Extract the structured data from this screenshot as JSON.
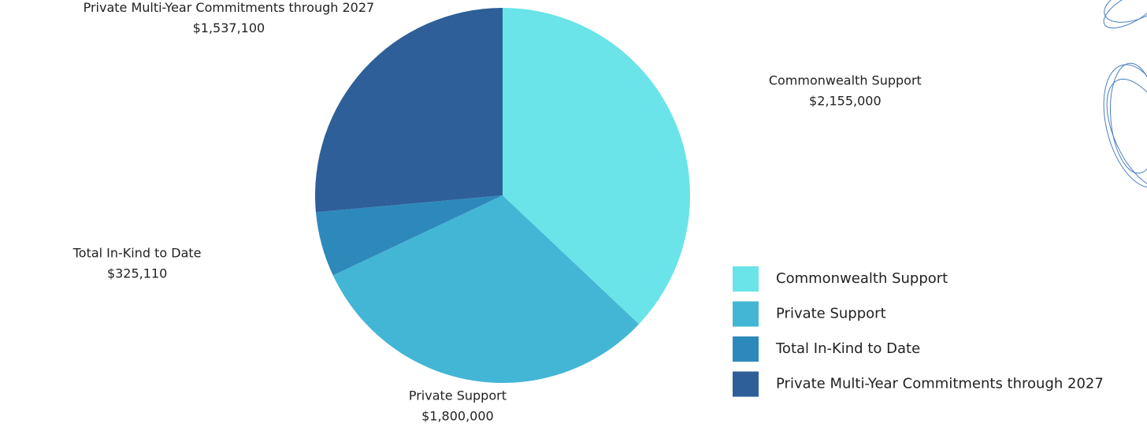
{
  "chart_data": {
    "type": "pie",
    "categories": [
      "Commonwealth Support",
      "Private Support",
      "Total In-Kind to Date",
      "Private Multi-Year Commitments through 2027"
    ],
    "values": [
      2155000,
      1800000,
      325110,
      1537100
    ],
    "value_labels": [
      "$2,155,000",
      "$1,800,000",
      "$325,110",
      "$1,537,100"
    ],
    "colors": [
      "#6ae4e8",
      "#43b6d6",
      "#2e89bb",
      "#2e5f98"
    ],
    "legend": "right"
  }
}
